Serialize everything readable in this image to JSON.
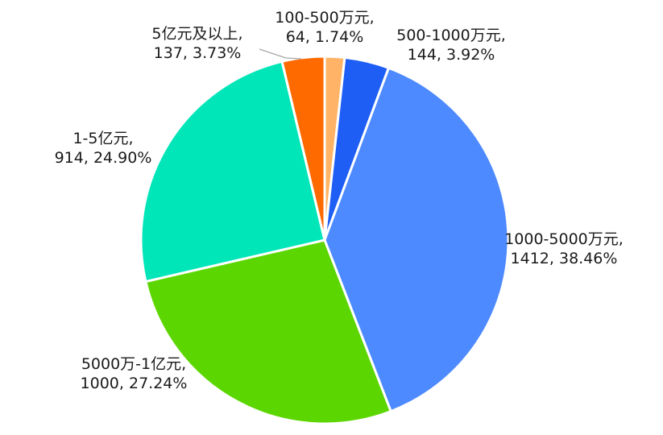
{
  "chart_data": {
    "type": "pie",
    "title": "",
    "start_angle_deg": 0,
    "direction": "clockwise",
    "slices": [
      {
        "name": "100-500万元",
        "value": 64,
        "percent": "1.74%",
        "color": "#FFB366"
      },
      {
        "name": "500-1000万元",
        "value": 144,
        "percent": "3.92%",
        "color": "#1E5EF5"
      },
      {
        "name": "1000-5000万元",
        "value": 1412,
        "percent": "38.46%",
        "color": "#4D8AFF"
      },
      {
        "name": "5000万-1亿元",
        "value": 1000,
        "percent": "27.24%",
        "color": "#5CD600"
      },
      {
        "name": "1-5亿元",
        "value": 914,
        "percent": "24.90%",
        "color": "#00E6B8"
      },
      {
        "name": "5亿元及以上",
        "value": 137,
        "percent": "3.73%",
        "color": "#FF6A00"
      }
    ],
    "legend": "none",
    "data_labels": "outside"
  }
}
